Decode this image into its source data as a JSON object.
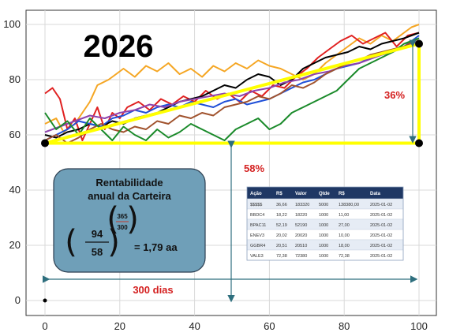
{
  "chart_data": {
    "type": "line",
    "title": "2026",
    "xlim": [
      0,
      100
    ],
    "ylim": [
      0,
      100
    ],
    "xticks": [
      0,
      20,
      40,
      60,
      80,
      100
    ],
    "yticks": [
      0,
      20,
      40,
      60,
      80,
      100
    ],
    "grid": true,
    "series": [
      {
        "color": "#f5a623",
        "values": [
          [
            0,
            64
          ],
          [
            3,
            66
          ],
          [
            5,
            61
          ],
          [
            8,
            64
          ],
          [
            10,
            68
          ],
          [
            12,
            72
          ],
          [
            14,
            78
          ],
          [
            17,
            80
          ],
          [
            19,
            82
          ],
          [
            21,
            84
          ],
          [
            24,
            81
          ],
          [
            27,
            85
          ],
          [
            30,
            83
          ],
          [
            33,
            86
          ],
          [
            36,
            82
          ],
          [
            39,
            84
          ],
          [
            42,
            81
          ],
          [
            45,
            85
          ],
          [
            48,
            83
          ],
          [
            51,
            86
          ],
          [
            54,
            84
          ],
          [
            57,
            87
          ],
          [
            60,
            85
          ],
          [
            63,
            84
          ],
          [
            66,
            82
          ],
          [
            69,
            80
          ],
          [
            72,
            82
          ],
          [
            75,
            86
          ],
          [
            78,
            89
          ],
          [
            81,
            92
          ],
          [
            84,
            95
          ],
          [
            87,
            93
          ],
          [
            90,
            96
          ],
          [
            93,
            94
          ],
          [
            96,
            97
          ],
          [
            98,
            99
          ],
          [
            100,
            100
          ]
        ]
      },
      {
        "color": "#e02020",
        "values": [
          [
            0,
            75
          ],
          [
            2,
            77
          ],
          [
            4,
            73
          ],
          [
            6,
            62
          ],
          [
            8,
            66
          ],
          [
            10,
            58
          ],
          [
            12,
            64
          ],
          [
            14,
            70
          ],
          [
            16,
            62
          ],
          [
            18,
            68
          ],
          [
            20,
            66
          ],
          [
            22,
            70
          ],
          [
            25,
            72
          ],
          [
            28,
            69
          ],
          [
            31,
            73
          ],
          [
            34,
            71
          ],
          [
            37,
            74
          ],
          [
            40,
            72
          ],
          [
            43,
            76
          ],
          [
            46,
            73
          ],
          [
            49,
            75
          ],
          [
            52,
            72
          ],
          [
            55,
            76
          ],
          [
            58,
            74
          ],
          [
            61,
            78
          ],
          [
            64,
            77
          ],
          [
            67,
            81
          ],
          [
            70,
            84
          ],
          [
            73,
            88
          ],
          [
            76,
            91
          ],
          [
            79,
            94
          ],
          [
            82,
            96
          ],
          [
            85,
            93
          ],
          [
            88,
            95
          ],
          [
            91,
            97
          ],
          [
            94,
            92
          ],
          [
            97,
            96
          ],
          [
            100,
            97
          ]
        ]
      },
      {
        "color": "#000000",
        "values": [
          [
            0,
            60
          ],
          [
            3,
            59
          ],
          [
            6,
            61
          ],
          [
            9,
            62
          ],
          [
            12,
            64
          ],
          [
            15,
            63
          ],
          [
            18,
            65
          ],
          [
            21,
            64
          ],
          [
            24,
            66
          ],
          [
            27,
            67
          ],
          [
            30,
            68
          ],
          [
            33,
            70
          ],
          [
            36,
            72
          ],
          [
            39,
            73
          ],
          [
            42,
            74
          ],
          [
            45,
            76
          ],
          [
            48,
            78
          ],
          [
            51,
            77
          ],
          [
            54,
            80
          ],
          [
            57,
            82
          ],
          [
            60,
            81
          ],
          [
            63,
            78
          ],
          [
            66,
            80
          ],
          [
            69,
            84
          ],
          [
            72,
            86
          ],
          [
            75,
            88
          ],
          [
            78,
            89
          ],
          [
            81,
            90
          ],
          [
            84,
            92
          ],
          [
            87,
            91
          ],
          [
            90,
            93
          ],
          [
            93,
            94
          ],
          [
            96,
            95
          ],
          [
            100,
            97
          ]
        ]
      },
      {
        "color": "#1f4fd8",
        "values": [
          [
            0,
            58
          ],
          [
            3,
            60
          ],
          [
            6,
            62
          ],
          [
            9,
            65
          ],
          [
            12,
            64
          ],
          [
            15,
            63
          ],
          [
            18,
            66
          ],
          [
            21,
            67
          ],
          [
            24,
            69
          ],
          [
            27,
            68
          ],
          [
            30,
            70
          ],
          [
            33,
            71
          ],
          [
            36,
            70
          ],
          [
            39,
            72
          ],
          [
            42,
            71
          ],
          [
            45,
            70
          ],
          [
            48,
            72
          ],
          [
            51,
            73
          ],
          [
            54,
            71
          ],
          [
            57,
            72
          ],
          [
            60,
            73
          ],
          [
            63,
            75
          ],
          [
            66,
            77
          ],
          [
            69,
            79
          ],
          [
            72,
            80
          ],
          [
            75,
            82
          ],
          [
            78,
            84
          ],
          [
            81,
            85
          ],
          [
            84,
            86
          ],
          [
            87,
            88
          ],
          [
            90,
            89
          ],
          [
            93,
            90
          ],
          [
            96,
            92
          ],
          [
            100,
            96
          ]
        ]
      },
      {
        "color": "#8e44ad",
        "values": [
          [
            0,
            61
          ],
          [
            4,
            63
          ],
          [
            8,
            65
          ],
          [
            12,
            67
          ],
          [
            16,
            66
          ],
          [
            20,
            68
          ],
          [
            24,
            69
          ],
          [
            28,
            71
          ],
          [
            32,
            70
          ],
          [
            36,
            72
          ],
          [
            40,
            73
          ],
          [
            44,
            74
          ],
          [
            48,
            75
          ],
          [
            52,
            74
          ],
          [
            56,
            76
          ],
          [
            60,
            77
          ],
          [
            64,
            79
          ],
          [
            68,
            80
          ],
          [
            72,
            82
          ],
          [
            76,
            83
          ],
          [
            80,
            85
          ],
          [
            84,
            86
          ],
          [
            88,
            88
          ],
          [
            92,
            90
          ],
          [
            96,
            92
          ],
          [
            100,
            94
          ]
        ]
      },
      {
        "color": "#a0522d",
        "values": [
          [
            0,
            58
          ],
          [
            3,
            60
          ],
          [
            6,
            57
          ],
          [
            9,
            59
          ],
          [
            12,
            62
          ],
          [
            15,
            64
          ],
          [
            18,
            62
          ],
          [
            21,
            61
          ],
          [
            24,
            63
          ],
          [
            27,
            62
          ],
          [
            30,
            65
          ],
          [
            33,
            64
          ],
          [
            36,
            67
          ],
          [
            39,
            66
          ],
          [
            42,
            68
          ],
          [
            45,
            67
          ],
          [
            48,
            70
          ],
          [
            51,
            71
          ],
          [
            54,
            72
          ],
          [
            57,
            74
          ],
          [
            60,
            73
          ],
          [
            63,
            75
          ],
          [
            66,
            78
          ],
          [
            69,
            77
          ],
          [
            72,
            79
          ],
          [
            75,
            82
          ],
          [
            78,
            84
          ],
          [
            81,
            86
          ],
          [
            84,
            87
          ],
          [
            87,
            89
          ],
          [
            90,
            90
          ],
          [
            93,
            91
          ],
          [
            96,
            92
          ],
          [
            100,
            95
          ]
        ]
      },
      {
        "color": "#1a8a2a",
        "values": [
          [
            0,
            68
          ],
          [
            3,
            62
          ],
          [
            6,
            65
          ],
          [
            9,
            60
          ],
          [
            12,
            66
          ],
          [
            15,
            62
          ],
          [
            18,
            58
          ],
          [
            21,
            63
          ],
          [
            24,
            60
          ],
          [
            27,
            58
          ],
          [
            30,
            62
          ],
          [
            33,
            59
          ],
          [
            36,
            61
          ],
          [
            39,
            64
          ],
          [
            42,
            62
          ],
          [
            45,
            60
          ],
          [
            48,
            58
          ],
          [
            51,
            62
          ],
          [
            54,
            64
          ],
          [
            57,
            66
          ],
          [
            60,
            62
          ],
          [
            63,
            64
          ],
          [
            66,
            68
          ],
          [
            69,
            70
          ],
          [
            72,
            72
          ],
          [
            75,
            74
          ],
          [
            78,
            76
          ],
          [
            81,
            80
          ],
          [
            84,
            84
          ],
          [
            87,
            86
          ],
          [
            90,
            88
          ],
          [
            93,
            90
          ],
          [
            96,
            93
          ],
          [
            100,
            95
          ]
        ]
      }
    ],
    "trend_line": {
      "color": "#ffff00",
      "from": [
        0,
        57
      ],
      "to": [
        100,
        93
      ]
    },
    "horizontal_guide": {
      "color": "#ffff00",
      "from": [
        0,
        57
      ],
      "to": [
        100,
        57
      ]
    },
    "vertical_guide": {
      "color": "#ffff00",
      "from": [
        100,
        57
      ],
      "to": [
        100,
        93
      ]
    },
    "markers": [
      [
        0,
        57
      ],
      [
        100,
        93
      ],
      [
        100,
        57
      ],
      [
        0,
        0
      ]
    ],
    "annotations": {
      "year": "2026",
      "vertical_pct": "36%",
      "diag_pct": "58%",
      "days": "300 dias"
    },
    "formula_box": {
      "title_line1": "Rentabilidade",
      "title_line2": "anual da Carteira",
      "numerator": "94",
      "denominator": "58",
      "exp_num": "365",
      "exp_den": "300",
      "result": "= 1,79 aa",
      "fill": "#6f9fb8"
    },
    "table": {
      "header_color": "#1f3864",
      "headers": [
        "Ação",
        "R$",
        "Valor",
        "Qtde",
        "R$",
        "Data"
      ],
      "rows": [
        [
          "$$$$$",
          "36,66",
          "183320",
          "5000",
          "138380,00",
          "2025-01-02"
        ],
        [
          "BBDC4",
          "18,22",
          "18220",
          "1000",
          "11,00",
          "2025-01-02"
        ],
        [
          "BPAC11",
          "52,19",
          "52190",
          "1000",
          "27,00",
          "2025-01-02"
        ],
        [
          "ENEV3",
          "20,02",
          "20020",
          "1000",
          "10,00",
          "2025-01-02"
        ],
        [
          "GGBR4",
          "20,51",
          "20510",
          "1000",
          "18,00",
          "2025-01-02"
        ],
        [
          "VALE3",
          "72,38",
          "72380",
          "1000",
          "72,38",
          "2025-01-02"
        ]
      ]
    }
  }
}
